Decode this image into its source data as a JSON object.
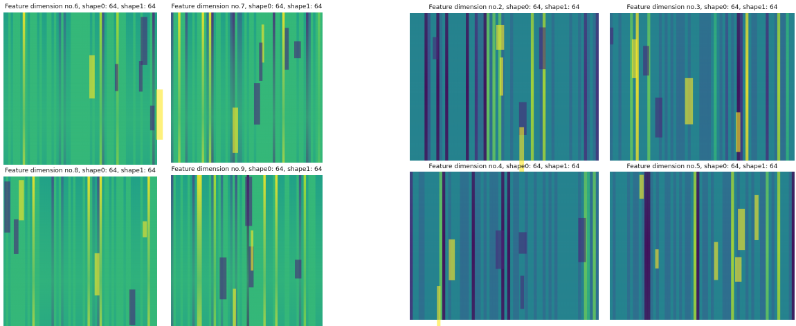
{
  "panels": [
    {
      "title": "Feature dimension no.6, shape0: 64, shape1: 64"
    },
    {
      "title": "Feature dimension no.7, shape0: 64, shape1: 64"
    },
    {
      "title": "Feature dimension no.2, shape0: 64, shape1: 64"
    },
    {
      "title": "Feature dimension no.3, shape0: 64, shape1: 64"
    },
    {
      "title": "Feature dimension no.8, shape0: 64, shape1: 64"
    },
    {
      "title": "Feature dimension no.9, shape0: 64, shape1: 64"
    },
    {
      "title": "Feature dimension no.4, shape0: 64, shape1: 64"
    },
    {
      "title": "Feature dimension no.5, shape0: 64, shape1: 64"
    }
  ]
}
